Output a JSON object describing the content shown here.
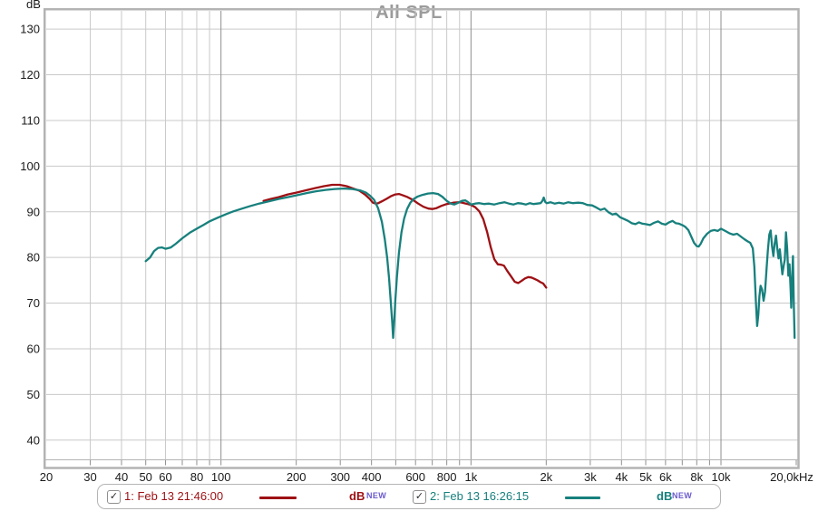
{
  "colors": {
    "background": "#ffffff",
    "grid_minor": "#c9c9c9",
    "grid_major": "#8f8f8f",
    "frame": "#b3b3b3",
    "axis_text": "#1b1b1b",
    "title": "#9b9b9b",
    "badge": "#6a5acd"
  },
  "icons": {
    "checkbox_check": "✓"
  },
  "chart_data": {
    "type": "line",
    "title": "All SPL",
    "y_unit": "dB",
    "x_scale": "log",
    "xlim": [
      20,
      20000
    ],
    "ylim": [
      34,
      134
    ],
    "grid": true,
    "legend_position": "bottom",
    "y_ticks": [
      40,
      50,
      60,
      70,
      80,
      90,
      100,
      110,
      120,
      130
    ],
    "x_tick_labels": [
      {
        "f": 20,
        "label": "20"
      },
      {
        "f": 30,
        "label": "30"
      },
      {
        "f": 40,
        "label": "40"
      },
      {
        "f": 50,
        "label": "50"
      },
      {
        "f": 60,
        "label": "60"
      },
      {
        "f": 80,
        "label": "80"
      },
      {
        "f": 100,
        "label": "100"
      },
      {
        "f": 200,
        "label": "200"
      },
      {
        "f": 300,
        "label": "300"
      },
      {
        "f": 400,
        "label": "400"
      },
      {
        "f": 600,
        "label": "600"
      },
      {
        "f": 800,
        "label": "800"
      },
      {
        "f": 1000,
        "label": "1k"
      },
      {
        "f": 2000,
        "label": "2k"
      },
      {
        "f": 3000,
        "label": "3k"
      },
      {
        "f": 4000,
        "label": "4k"
      },
      {
        "f": 5000,
        "label": "5k"
      },
      {
        "f": 6000,
        "label": "6k"
      },
      {
        "f": 8000,
        "label": "8k"
      },
      {
        "f": 10000,
        "label": "10k"
      },
      {
        "f": 20000,
        "label": "20,0kHz"
      }
    ],
    "series": [
      {
        "name": "1: Feb 13 21:46:00",
        "color": "#9e1014",
        "unit_label": "dB",
        "badge": "NEW",
        "checked": true,
        "points": [
          [
            148,
            92.4
          ],
          [
            158,
            92.8
          ],
          [
            170,
            93.2
          ],
          [
            185,
            93.8
          ],
          [
            200,
            94.2
          ],
          [
            218,
            94.7
          ],
          [
            238,
            95.2
          ],
          [
            258,
            95.6
          ],
          [
            278,
            95.9
          ],
          [
            298,
            95.9
          ],
          [
            318,
            95.6
          ],
          [
            338,
            95.1
          ],
          [
            358,
            94.6
          ],
          [
            378,
            93.7
          ],
          [
            394,
            92.8
          ],
          [
            405,
            92.0
          ],
          [
            415,
            91.8
          ],
          [
            426,
            91.9
          ],
          [
            440,
            92.3
          ],
          [
            458,
            92.8
          ],
          [
            478,
            93.4
          ],
          [
            498,
            93.8
          ],
          [
            515,
            93.9
          ],
          [
            534,
            93.6
          ],
          [
            558,
            93.2
          ],
          [
            586,
            92.6
          ],
          [
            615,
            91.8
          ],
          [
            645,
            91.1
          ],
          [
            675,
            90.7
          ],
          [
            700,
            90.6
          ],
          [
            728,
            90.8
          ],
          [
            762,
            91.3
          ],
          [
            800,
            91.7
          ],
          [
            850,
            92.0
          ],
          [
            905,
            92.1
          ],
          [
            955,
            91.8
          ],
          [
            1000,
            91.5
          ],
          [
            1040,
            91.0
          ],
          [
            1080,
            90.1
          ],
          [
            1120,
            88.4
          ],
          [
            1160,
            85.6
          ],
          [
            1200,
            82.2
          ],
          [
            1240,
            79.6
          ],
          [
            1280,
            78.5
          ],
          [
            1320,
            78.4
          ],
          [
            1355,
            78.2
          ],
          [
            1395,
            77.1
          ],
          [
            1445,
            75.9
          ],
          [
            1495,
            74.7
          ],
          [
            1545,
            74.4
          ],
          [
            1595,
            74.9
          ],
          [
            1645,
            75.4
          ],
          [
            1695,
            75.7
          ],
          [
            1745,
            75.6
          ],
          [
            1795,
            75.3
          ],
          [
            1845,
            75.0
          ],
          [
            1895,
            74.6
          ],
          [
            1945,
            74.3
          ],
          [
            2000,
            73.4
          ]
        ]
      },
      {
        "name": "2: Feb 13 16:26:15",
        "color": "#17807d",
        "unit_label": "dB",
        "badge": "NEW",
        "checked": true,
        "points": [
          [
            50,
            79.2
          ],
          [
            52,
            80.0
          ],
          [
            54,
            81.4
          ],
          [
            56,
            82.1
          ],
          [
            58,
            82.2
          ],
          [
            60,
            81.9
          ],
          [
            63,
            82.2
          ],
          [
            66,
            83.0
          ],
          [
            70,
            84.2
          ],
          [
            75,
            85.4
          ],
          [
            80,
            86.3
          ],
          [
            85,
            87.1
          ],
          [
            90,
            87.9
          ],
          [
            97,
            88.7
          ],
          [
            105,
            89.5
          ],
          [
            112,
            90.1
          ],
          [
            120,
            90.6
          ],
          [
            130,
            91.2
          ],
          [
            142,
            91.8
          ],
          [
            155,
            92.3
          ],
          [
            170,
            92.8
          ],
          [
            185,
            93.2
          ],
          [
            200,
            93.6
          ],
          [
            220,
            94.1
          ],
          [
            240,
            94.5
          ],
          [
            262,
            94.8
          ],
          [
            285,
            95.0
          ],
          [
            310,
            95.1
          ],
          [
            335,
            95.0
          ],
          [
            360,
            94.7
          ],
          [
            380,
            94.2
          ],
          [
            395,
            93.5
          ],
          [
            410,
            92.6
          ],
          [
            425,
            90.8
          ],
          [
            440,
            87.8
          ],
          [
            452,
            84.0
          ],
          [
            462,
            80.0
          ],
          [
            470,
            75.5
          ],
          [
            478,
            70.0
          ],
          [
            484,
            65.8
          ],
          [
            488,
            62.4
          ],
          [
            493,
            66.0
          ],
          [
            498,
            70.5
          ],
          [
            505,
            75.5
          ],
          [
            515,
            81.0
          ],
          [
            527,
            85.5
          ],
          [
            540,
            88.5
          ],
          [
            555,
            90.6
          ],
          [
            572,
            92.0
          ],
          [
            590,
            92.8
          ],
          [
            610,
            93.3
          ],
          [
            640,
            93.7
          ],
          [
            672,
            94.0
          ],
          [
            705,
            94.1
          ],
          [
            738,
            93.9
          ],
          [
            768,
            93.3
          ],
          [
            800,
            92.4
          ],
          [
            830,
            91.8
          ],
          [
            858,
            91.6
          ],
          [
            890,
            92.0
          ],
          [
            920,
            92.4
          ],
          [
            950,
            92.5
          ],
          [
            975,
            92.1
          ],
          [
            1000,
            91.6
          ],
          [
            1040,
            91.8
          ],
          [
            1080,
            91.9
          ],
          [
            1130,
            91.7
          ],
          [
            1180,
            91.8
          ],
          [
            1240,
            91.6
          ],
          [
            1300,
            91.9
          ],
          [
            1360,
            92.1
          ],
          [
            1420,
            91.8
          ],
          [
            1480,
            91.6
          ],
          [
            1540,
            91.9
          ],
          [
            1600,
            91.8
          ],
          [
            1660,
            91.6
          ],
          [
            1720,
            91.9
          ],
          [
            1780,
            91.7
          ],
          [
            1840,
            91.8
          ],
          [
            1900,
            91.9
          ],
          [
            1930,
            92.4
          ],
          [
            1955,
            93.1
          ],
          [
            1980,
            92.2
          ],
          [
            2010,
            91.9
          ],
          [
            2080,
            92.1
          ],
          [
            2160,
            91.8
          ],
          [
            2250,
            92.0
          ],
          [
            2350,
            91.8
          ],
          [
            2450,
            92.1
          ],
          [
            2560,
            91.9
          ],
          [
            2680,
            92.0
          ],
          [
            2800,
            91.9
          ],
          [
            2920,
            91.5
          ],
          [
            3050,
            91.4
          ],
          [
            3180,
            90.9
          ],
          [
            3300,
            90.4
          ],
          [
            3420,
            90.7
          ],
          [
            3550,
            89.9
          ],
          [
            3680,
            89.4
          ],
          [
            3800,
            89.6
          ],
          [
            3950,
            88.8
          ],
          [
            4100,
            88.4
          ],
          [
            4250,
            88.0
          ],
          [
            4400,
            87.5
          ],
          [
            4550,
            87.3
          ],
          [
            4700,
            87.7
          ],
          [
            4850,
            87.4
          ],
          [
            5000,
            87.3
          ],
          [
            5200,
            87.1
          ],
          [
            5400,
            87.6
          ],
          [
            5600,
            87.9
          ],
          [
            5800,
            87.4
          ],
          [
            6000,
            87.2
          ],
          [
            6200,
            87.7
          ],
          [
            6400,
            88.0
          ],
          [
            6600,
            87.5
          ],
          [
            6800,
            87.4
          ],
          [
            7000,
            87.1
          ],
          [
            7200,
            86.7
          ],
          [
            7400,
            86.0
          ],
          [
            7600,
            84.6
          ],
          [
            7800,
            83.2
          ],
          [
            8000,
            82.5
          ],
          [
            8150,
            82.4
          ],
          [
            8300,
            83.0
          ],
          [
            8500,
            84.2
          ],
          [
            8800,
            85.2
          ],
          [
            9100,
            85.8
          ],
          [
            9400,
            86.0
          ],
          [
            9700,
            85.8
          ],
          [
            10000,
            86.3
          ],
          [
            10400,
            85.8
          ],
          [
            10800,
            85.3
          ],
          [
            11200,
            85.0
          ],
          [
            11600,
            85.2
          ],
          [
            12000,
            84.6
          ],
          [
            12400,
            84.0
          ],
          [
            12800,
            83.5
          ],
          [
            13100,
            83.2
          ],
          [
            13400,
            82.0
          ],
          [
            13600,
            78.0
          ],
          [
            13800,
            70.0
          ],
          [
            13950,
            65.0
          ],
          [
            14100,
            67.5
          ],
          [
            14250,
            71.5
          ],
          [
            14400,
            73.8
          ],
          [
            14600,
            73.0
          ],
          [
            14800,
            70.5
          ],
          [
            15000,
            72.5
          ],
          [
            15200,
            77.0
          ],
          [
            15400,
            81.5
          ],
          [
            15600,
            85.0
          ],
          [
            15800,
            85.9
          ],
          [
            16000,
            82.5
          ],
          [
            16200,
            80.3
          ],
          [
            16400,
            83.0
          ],
          [
            16600,
            84.8
          ],
          [
            16800,
            82.0
          ],
          [
            17000,
            79.8
          ],
          [
            17200,
            81.8
          ],
          [
            17400,
            79.0
          ],
          [
            17600,
            76.3
          ],
          [
            17800,
            78.0
          ],
          [
            18000,
            79.5
          ],
          [
            18200,
            85.5
          ],
          [
            18400,
            82.0
          ],
          [
            18600,
            76.0
          ],
          [
            18800,
            78.5
          ],
          [
            19000,
            72.5
          ],
          [
            19100,
            69.0
          ],
          [
            19250,
            75.0
          ],
          [
            19400,
            80.3
          ],
          [
            19550,
            70.0
          ],
          [
            19700,
            62.4
          ]
        ]
      }
    ]
  }
}
